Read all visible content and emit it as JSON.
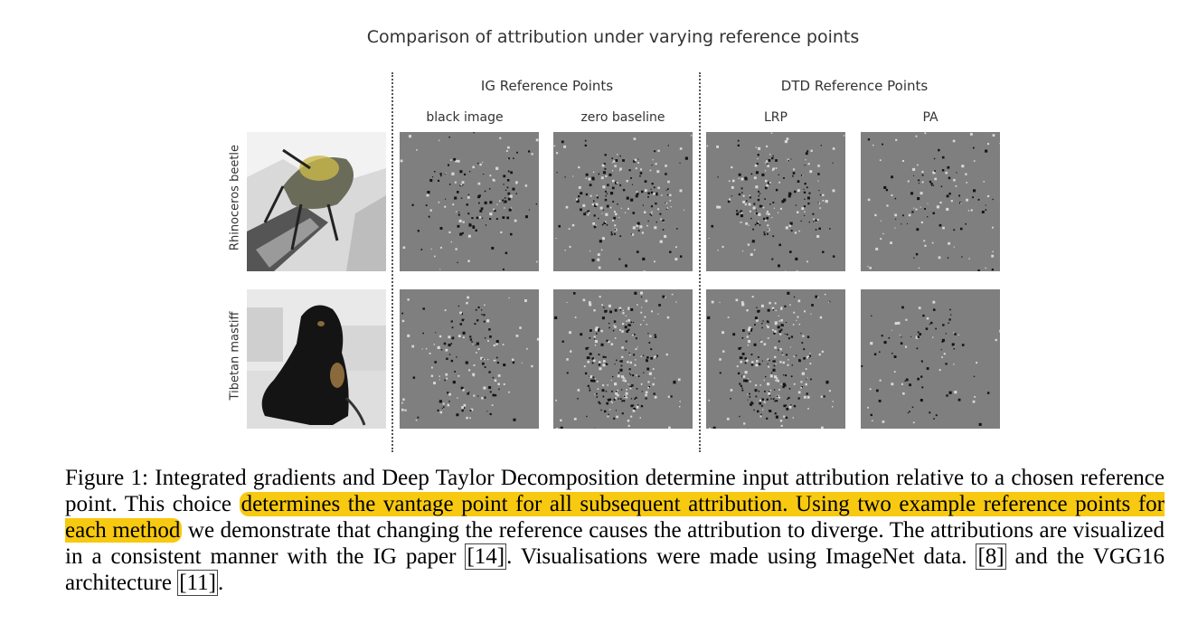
{
  "figure": {
    "title": "Comparison of attribution under varying reference points",
    "groups": {
      "ig": "IG Reference Points",
      "dtd": "DTD Reference Points"
    },
    "columns": [
      "black image",
      "zero baseline",
      "LRP",
      "PA"
    ],
    "rows": [
      "Rhinoceros beetle",
      "Tibetan mastiff"
    ]
  },
  "caption": {
    "part1": "Figure 1: Integrated gradients and Deep Taylor Decomposition determine input attribution relative to a chosen reference point. This choice ",
    "highlight": "determines the vantage point for all subsequent attribution. Using two example reference points for each method",
    "part2": " we demonstrate that changing the reference causes the attribution to diverge. The attributions are visualized in a consistent manner with the IG paper ",
    "ref1": "[14]",
    "part3": ". Visualisations were made using ImageNet data. ",
    "ref2": "[8]",
    "part4": " and the VGG16 architecture ",
    "ref3": "[11]",
    "part5": ".",
    "highlight_color": "#f7c910"
  }
}
